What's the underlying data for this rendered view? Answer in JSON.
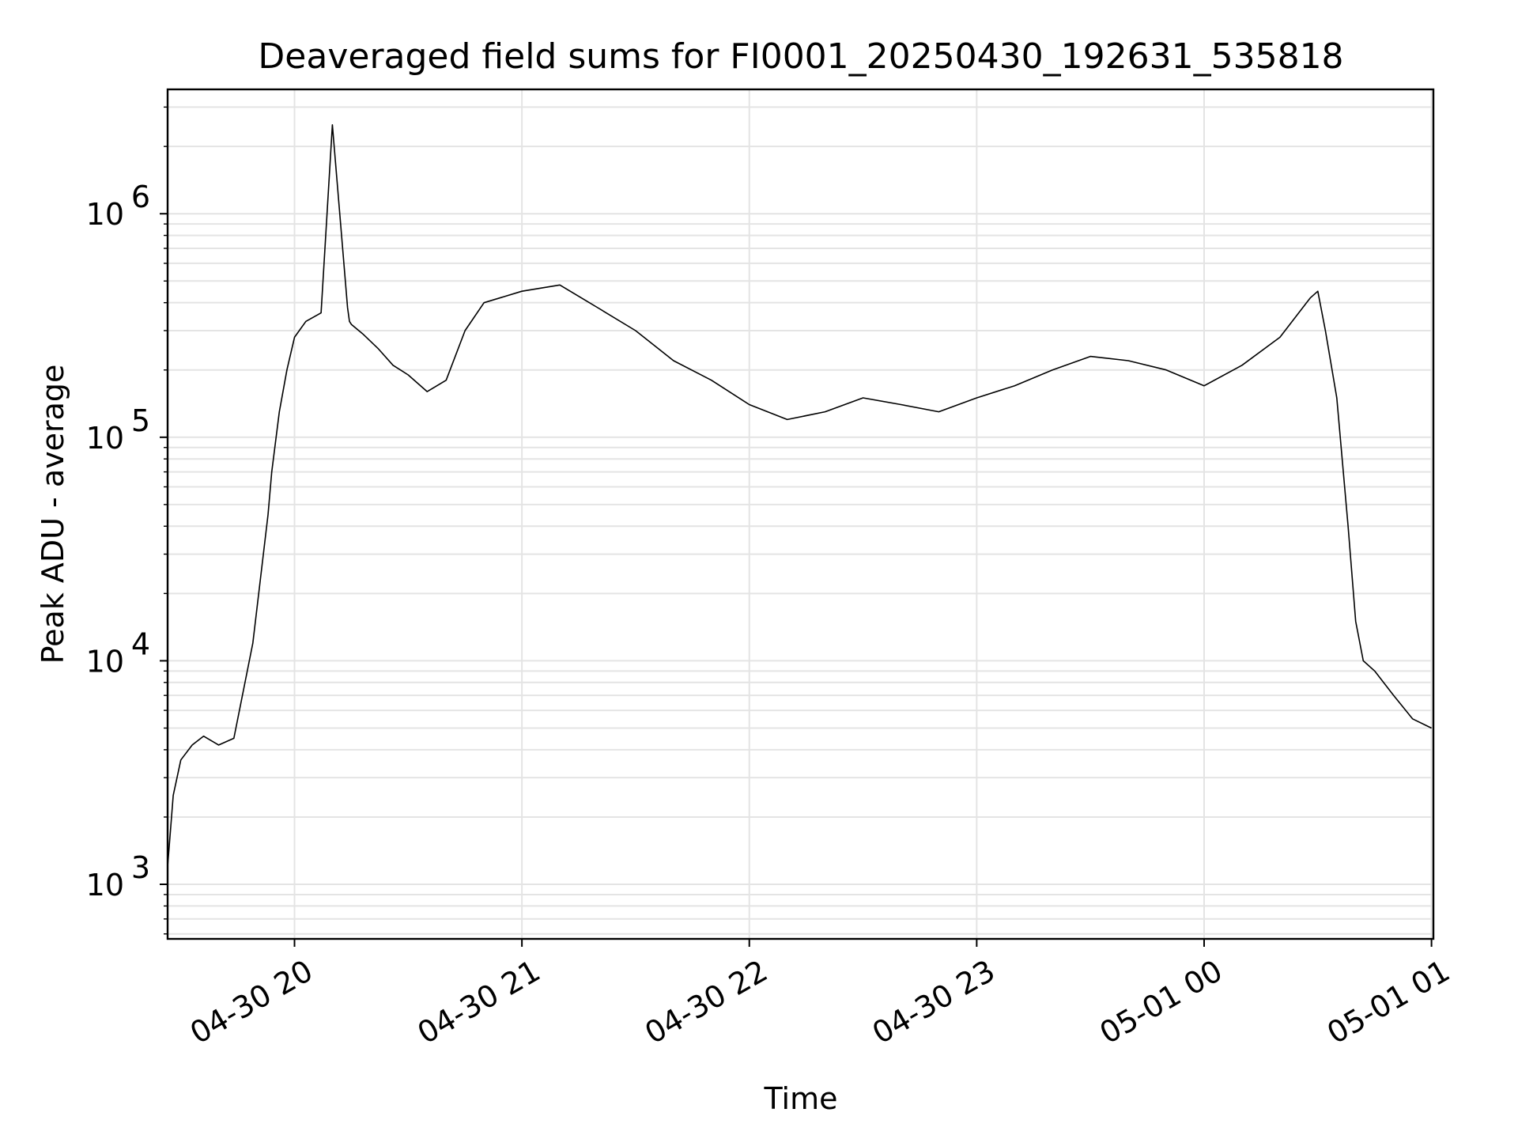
{
  "chart_data": {
    "type": "line",
    "title": "Deaveraged field sums for FI0001_20250430_192631_535818",
    "xlabel": "Time",
    "ylabel": "Peak ADU - average",
    "yscale": "log",
    "ylim": [
      570,
      3600000
    ],
    "xlim": [
      "2025-04-30 19:26:31",
      "2025-05-01 01:00:30"
    ],
    "grid": true,
    "line_color": "#000000",
    "x_ticks": [
      {
        "label": "04-30 20",
        "value": "2025-04-30 20:00"
      },
      {
        "label": "04-30 21",
        "value": "2025-04-30 21:00"
      },
      {
        "label": "04-30 22",
        "value": "2025-04-30 22:00"
      },
      {
        "label": "04-30 23",
        "value": "2025-04-30 23:00"
      },
      {
        "label": "05-01 00",
        "value": "2025-05-01 00:00"
      },
      {
        "label": "05-01 01",
        "value": "2025-05-01 01:00"
      }
    ],
    "y_ticks": [
      {
        "base": "10",
        "exp": "3",
        "value": 1000
      },
      {
        "base": "10",
        "exp": "4",
        "value": 10000
      },
      {
        "base": "10",
        "exp": "5",
        "value": 100000
      },
      {
        "base": "10",
        "exp": "6",
        "value": 1000000
      }
    ],
    "series": [
      {
        "x": [
          "2025-04-30 19:26:31",
          "2025-04-30 19:28",
          "2025-04-30 19:30",
          "2025-04-30 19:33",
          "2025-04-30 19:36",
          "2025-04-30 19:40",
          "2025-04-30 19:44",
          "2025-04-30 19:49",
          "2025-04-30 19:53",
          "2025-04-30 19:54",
          "2025-04-30 19:56",
          "2025-04-30 19:58",
          "2025-04-30 20:00",
          "2025-04-30 20:03",
          "2025-04-30 20:07",
          "2025-04-30 20:10",
          "2025-04-30 20:14",
          "2025-04-30 20:14:30",
          "2025-04-30 20:15",
          "2025-04-30 20:18",
          "2025-04-30 20:22",
          "2025-04-30 20:26",
          "2025-04-30 20:30",
          "2025-04-30 20:35",
          "2025-04-30 20:40",
          "2025-04-30 20:45",
          "2025-04-30 20:50",
          "2025-04-30 21:00",
          "2025-04-30 21:10",
          "2025-04-30 21:20",
          "2025-04-30 21:30",
          "2025-04-30 21:40",
          "2025-04-30 21:50",
          "2025-04-30 22:00",
          "2025-04-30 22:10",
          "2025-04-30 22:20",
          "2025-04-30 22:30",
          "2025-04-30 22:40",
          "2025-04-30 22:50",
          "2025-04-30 23:00",
          "2025-04-30 23:10",
          "2025-04-30 23:20",
          "2025-04-30 23:30",
          "2025-04-30 23:40",
          "2025-04-30 23:50",
          "2025-05-01 00:00",
          "2025-05-01 00:10",
          "2025-05-01 00:20",
          "2025-05-01 00:28",
          "2025-05-01 00:30",
          "2025-05-01 00:32",
          "2025-05-01 00:35",
          "2025-05-01 00:38",
          "2025-05-01 00:40",
          "2025-05-01 00:42",
          "2025-05-01 00:45",
          "2025-05-01 00:50",
          "2025-05-01 00:55",
          "2025-05-01 01:00"
        ],
        "y": [
          1200,
          2500,
          3600,
          4200,
          4600,
          4200,
          4500,
          12000,
          45000,
          70000,
          130000,
          200000,
          280000,
          330000,
          360000,
          2500000,
          380000,
          330000,
          320000,
          290000,
          250000,
          210000,
          190000,
          160000,
          180000,
          300000,
          400000,
          450000,
          480000,
          380000,
          300000,
          220000,
          180000,
          140000,
          120000,
          130000,
          150000,
          140000,
          130000,
          150000,
          170000,
          200000,
          230000,
          220000,
          200000,
          170000,
          210000,
          280000,
          420000,
          450000,
          300000,
          150000,
          40000,
          15000,
          10000,
          9000,
          7000,
          5500,
          5000
        ]
      }
    ]
  }
}
